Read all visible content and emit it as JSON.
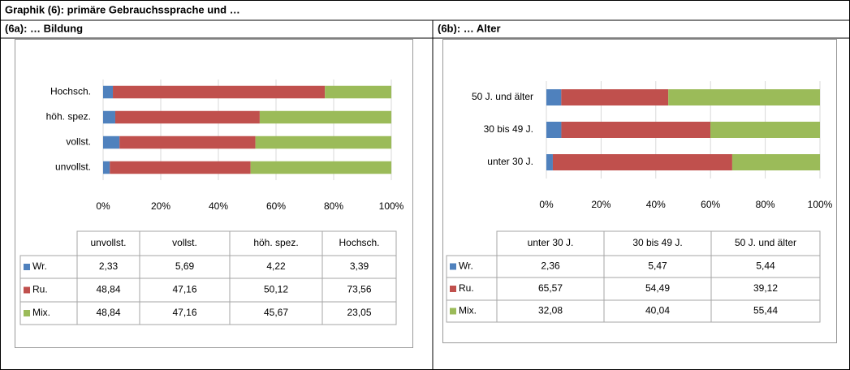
{
  "header": {
    "title": "Graphik (6): primäre Gebrauchssprache und …",
    "left": "(6a): … Bildung",
    "right": "(6b): … Alter"
  },
  "chart_data": [
    {
      "type": "bar",
      "orientation": "horizontal",
      "stacked": true,
      "categories": [
        "unvollst.",
        "vollst.",
        "höh. spez.",
        "Hochsch."
      ],
      "series": [
        {
          "name": "Wr.",
          "color": "#4f81bd",
          "values": [
            2.33,
            5.69,
            4.22,
            3.39
          ],
          "value_labels": [
            "2,33",
            "5,69",
            "4,22",
            "3,39"
          ]
        },
        {
          "name": "Ru.",
          "color": "#c0504d",
          "values": [
            48.84,
            47.16,
            50.12,
            73.56
          ],
          "value_labels": [
            "48,84",
            "47,16",
            "50,12",
            "73,56"
          ]
        },
        {
          "name": "Mix.",
          "color": "#9bbb59",
          "values": [
            48.84,
            47.16,
            45.67,
            23.05
          ],
          "value_labels": [
            "48,84",
            "47,16",
            "45,67",
            "23,05"
          ]
        }
      ],
      "xlim": [
        0,
        100
      ],
      "xticks": [
        {
          "value": 0,
          "label": "0%"
        },
        {
          "value": 20,
          "label": "20%"
        },
        {
          "value": 40,
          "label": "40%"
        },
        {
          "value": 60,
          "label": "60%"
        },
        {
          "value": 80,
          "label": "80%"
        },
        {
          "value": 100,
          "label": "100%"
        }
      ],
      "grid": true
    },
    {
      "type": "bar",
      "orientation": "horizontal",
      "stacked": true,
      "categories": [
        "unter 30 J.",
        "30 bis 49 J.",
        "50 J. und älter"
      ],
      "series": [
        {
          "name": "Wr.",
          "color": "#4f81bd",
          "values": [
            2.36,
            5.47,
            5.44
          ],
          "value_labels": [
            "2,36",
            "5,47",
            "5,44"
          ]
        },
        {
          "name": "Ru.",
          "color": "#c0504d",
          "values": [
            65.57,
            54.49,
            39.12
          ],
          "value_labels": [
            "65,57",
            "54,49",
            "39,12"
          ]
        },
        {
          "name": "Mix.",
          "color": "#9bbb59",
          "values": [
            32.08,
            40.04,
            55.44
          ],
          "value_labels": [
            "32,08",
            "40,04",
            "55,44"
          ]
        }
      ],
      "xlim": [
        0,
        100
      ],
      "xticks": [
        {
          "value": 0,
          "label": "0%"
        },
        {
          "value": 20,
          "label": "20%"
        },
        {
          "value": 40,
          "label": "40%"
        },
        {
          "value": 60,
          "label": "60%"
        },
        {
          "value": 80,
          "label": "80%"
        },
        {
          "value": 100,
          "label": "100%"
        }
      ],
      "grid": true
    }
  ]
}
